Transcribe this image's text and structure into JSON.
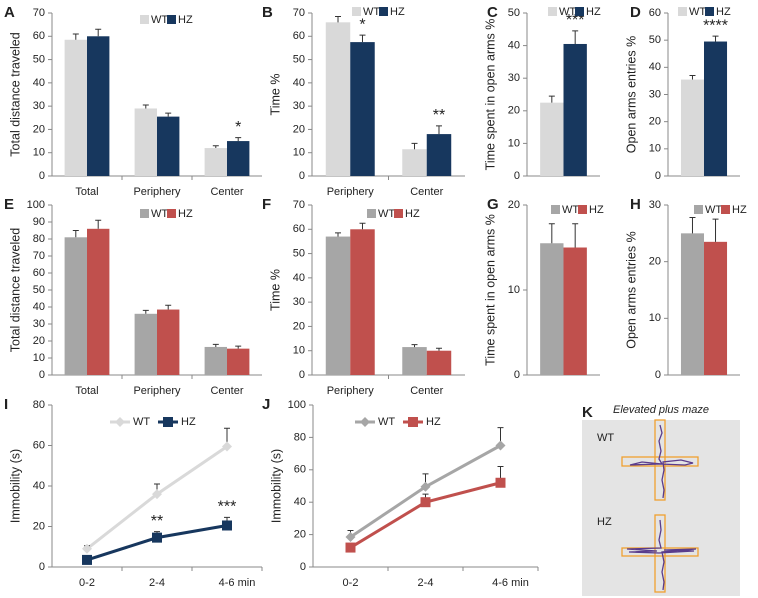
{
  "chart_data": [
    {
      "type": "bar",
      "label": "A",
      "ylabel": "Total distance traveled",
      "categories": [
        "Total",
        "Periphery",
        "Center"
      ],
      "ylim": [
        0,
        70
      ],
      "yticks": [
        0,
        10,
        20,
        30,
        40,
        50,
        60,
        70
      ],
      "series": [
        {
          "name": "WT",
          "color": "#d9d9d9",
          "values": [
            58.5,
            29,
            12
          ],
          "errors": [
            2.5,
            1.5,
            1
          ]
        },
        {
          "name": "HZ",
          "color": "#17375e",
          "values": [
            60,
            25.5,
            15
          ],
          "errors": [
            3,
            1.5,
            1.5
          ],
          "significance": [
            null,
            null,
            "*"
          ]
        }
      ]
    },
    {
      "type": "bar",
      "label": "B",
      "ylabel": "Time %",
      "categories": [
        "Periphery",
        "Center"
      ],
      "ylim": [
        0,
        70
      ],
      "yticks": [
        0,
        10,
        20,
        30,
        40,
        50,
        60,
        70
      ],
      "series": [
        {
          "name": "WT",
          "color": "#d9d9d9",
          "values": [
            66,
            11.5
          ],
          "errors": [
            2.5,
            2.5
          ]
        },
        {
          "name": "HZ",
          "color": "#17375e",
          "values": [
            57.5,
            18
          ],
          "errors": [
            3,
            3.5
          ],
          "significance": [
            "*",
            "**"
          ]
        }
      ]
    },
    {
      "type": "bar",
      "label": "C",
      "ylabel": "Time spent in open arms  %",
      "categories": [
        null
      ],
      "ylim": [
        0,
        50
      ],
      "yticks": [
        0,
        10,
        20,
        30,
        40,
        50
      ],
      "series": [
        {
          "name": "WT",
          "color": "#d9d9d9",
          "values": [
            22.5
          ],
          "errors": [
            2
          ]
        },
        {
          "name": "HZ",
          "color": "#17375e",
          "values": [
            40.5
          ],
          "errors": [
            4
          ],
          "significance": [
            "***"
          ]
        }
      ]
    },
    {
      "type": "bar",
      "label": "D",
      "ylabel": "Open arms entries  %",
      "categories": [
        null
      ],
      "ylim": [
        0,
        60
      ],
      "yticks": [
        0,
        10,
        20,
        30,
        40,
        50,
        60
      ],
      "series": [
        {
          "name": "WT",
          "color": "#d9d9d9",
          "values": [
            35.5
          ],
          "errors": [
            1.5
          ]
        },
        {
          "name": "HZ",
          "color": "#17375e",
          "values": [
            49.5
          ],
          "errors": [
            2
          ],
          "significance": [
            "****"
          ]
        }
      ]
    },
    {
      "type": "bar",
      "label": "E",
      "ylabel": "Total distance traveled",
      "categories": [
        "Total",
        "Periphery",
        "Center"
      ],
      "ylim": [
        0,
        100
      ],
      "yticks": [
        0,
        10,
        20,
        30,
        40,
        50,
        60,
        70,
        80,
        90,
        100
      ],
      "series": [
        {
          "name": "WT",
          "color": "#a6a6a6",
          "values": [
            81,
            36,
            16.5
          ],
          "errors": [
            4,
            2,
            1.5
          ]
        },
        {
          "name": "HZ",
          "color": "#c0504d",
          "values": [
            86,
            38.5,
            15.5
          ],
          "errors": [
            5,
            2.5,
            1.5
          ]
        }
      ]
    },
    {
      "type": "bar",
      "label": "F",
      "ylabel": "Time %",
      "categories": [
        "Periphery",
        "Center"
      ],
      "ylim": [
        0,
        70
      ],
      "yticks": [
        0,
        10,
        20,
        30,
        40,
        50,
        60,
        70
      ],
      "series": [
        {
          "name": "WT",
          "color": "#a6a6a6",
          "values": [
            57,
            11.5
          ],
          "errors": [
            1.5,
            1
          ]
        },
        {
          "name": "HZ",
          "color": "#c0504d",
          "values": [
            60,
            10
          ],
          "errors": [
            2.5,
            1
          ]
        }
      ]
    },
    {
      "type": "bar",
      "label": "G",
      "ylabel": "Time spent in open arms  %",
      "categories": [
        null
      ],
      "ylim": [
        0,
        20
      ],
      "yticks": [
        0,
        10,
        20
      ],
      "series": [
        {
          "name": "WT",
          "color": "#a6a6a6",
          "values": [
            15.5
          ],
          "errors": [
            2.3
          ]
        },
        {
          "name": "HZ",
          "color": "#c0504d",
          "values": [
            15
          ],
          "errors": [
            2.8
          ]
        }
      ]
    },
    {
      "type": "bar",
      "label": "H",
      "ylabel": "Open arms entries %",
      "categories": [
        null
      ],
      "ylim": [
        0,
        30
      ],
      "yticks": [
        0,
        10,
        20,
        30
      ],
      "series": [
        {
          "name": "WT",
          "color": "#a6a6a6",
          "values": [
            25
          ],
          "errors": [
            2.8
          ]
        },
        {
          "name": "HZ",
          "color": "#c0504d",
          "values": [
            23.5
          ],
          "errors": [
            4
          ]
        }
      ]
    },
    {
      "type": "line",
      "label": "I",
      "ylabel": "Immobility (s)",
      "categories": [
        "0-2",
        "2-4",
        "4-6 min"
      ],
      "ylim": [
        0,
        80
      ],
      "yticks": [
        0,
        20,
        40,
        60,
        80
      ],
      "series": [
        {
          "name": "WT",
          "color": "#d9d9d9",
          "marker": "diamond",
          "values": [
            9,
            36,
            59.5
          ],
          "errors": [
            1.5,
            5,
            9
          ]
        },
        {
          "name": "HZ",
          "color": "#17375e",
          "marker": "square",
          "values": [
            3.5,
            14.5,
            20.5
          ],
          "errors": [
            1,
            3,
            4
          ],
          "significance": [
            null,
            "**",
            "***"
          ]
        }
      ]
    },
    {
      "type": "line",
      "label": "J",
      "ylabel": "Immobility (s)",
      "categories": [
        "0-2",
        "2-4",
        "4-6 min"
      ],
      "ylim": [
        0,
        100
      ],
      "yticks": [
        0,
        20,
        40,
        60,
        80,
        100
      ],
      "series": [
        {
          "name": "WT",
          "color": "#a6a6a6",
          "marker": "diamond",
          "values": [
            18.5,
            49.5,
            75
          ],
          "errors": [
            4,
            8,
            11
          ]
        },
        {
          "name": "HZ",
          "color": "#c0504d",
          "marker": "square",
          "values": [
            12,
            40,
            52
          ],
          "errors": [
            2,
            5,
            10
          ]
        }
      ]
    }
  ],
  "diagram": {
    "label": "K",
    "title": "Elevated plus maze",
    "arms": [
      "WT",
      "HZ"
    ]
  }
}
